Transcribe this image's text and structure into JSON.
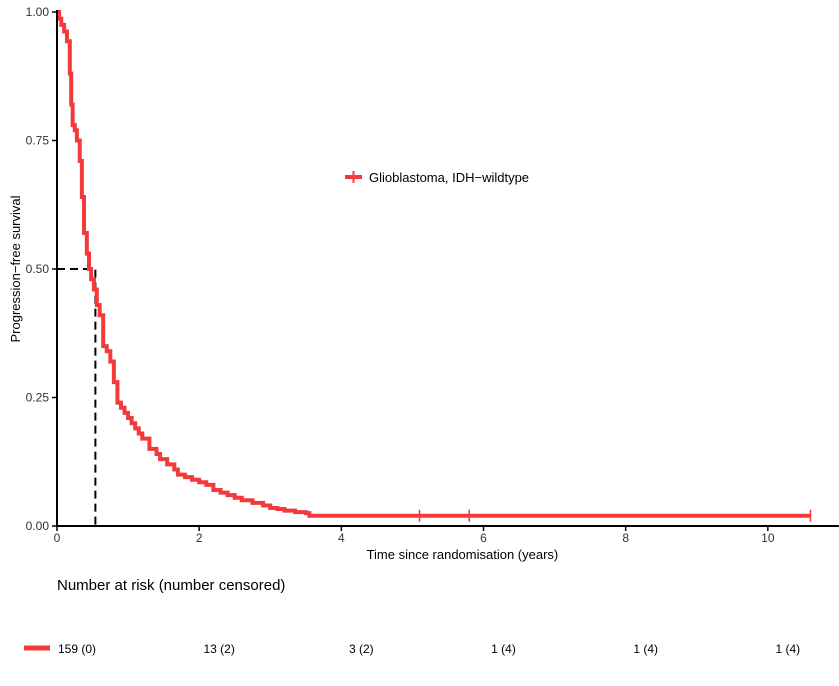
{
  "chart_data": {
    "type": "line",
    "subtype": "kaplan-meier",
    "title": "",
    "xlabel": "Time since randomisation (years)",
    "ylabel": "Progression−free survival",
    "xlim": [
      0,
      11
    ],
    "ylim": [
      0,
      1
    ],
    "x_ticks": [
      0,
      2,
      4,
      6,
      8,
      10
    ],
    "x_tick_labels": [
      "0",
      "2",
      "4",
      "6",
      "8",
      "10"
    ],
    "y_ticks": [
      0,
      0.25,
      0.5,
      0.75,
      1
    ],
    "y_tick_labels": [
      "0.00",
      "0.25",
      "0.50",
      "0.75",
      "1.00"
    ],
    "grid": false,
    "legend_position": "upper-middle",
    "median": {
      "x": 0.54,
      "y": 0.5
    },
    "series": [
      {
        "name": "Glioblastoma, IDH−wildtype",
        "color": "#f23a3a",
        "x": [
          0,
          0.03,
          0.06,
          0.1,
          0.14,
          0.18,
          0.2,
          0.22,
          0.25,
          0.28,
          0.32,
          0.35,
          0.38,
          0.42,
          0.45,
          0.48,
          0.52,
          0.56,
          0.6,
          0.65,
          0.7,
          0.75,
          0.8,
          0.85,
          0.9,
          0.95,
          1.0,
          1.05,
          1.1,
          1.15,
          1.2,
          1.3,
          1.4,
          1.45,
          1.55,
          1.65,
          1.7,
          1.8,
          1.9,
          2.0,
          2.1,
          2.2,
          2.3,
          2.4,
          2.5,
          2.6,
          2.75,
          2.9,
          3.0,
          3.1,
          3.2,
          3.35,
          3.5,
          3.55,
          10.6
        ],
        "y": [
          1.0,
          0.987,
          0.975,
          0.962,
          0.943,
          0.88,
          0.82,
          0.78,
          0.77,
          0.75,
          0.71,
          0.64,
          0.57,
          0.53,
          0.5,
          0.48,
          0.46,
          0.43,
          0.41,
          0.35,
          0.34,
          0.32,
          0.28,
          0.24,
          0.23,
          0.22,
          0.21,
          0.2,
          0.19,
          0.18,
          0.17,
          0.15,
          0.14,
          0.13,
          0.12,
          0.11,
          0.1,
          0.095,
          0.09,
          0.085,
          0.08,
          0.07,
          0.065,
          0.06,
          0.055,
          0.05,
          0.045,
          0.04,
          0.035,
          0.033,
          0.03,
          0.027,
          0.025,
          0.02,
          0.02
        ],
        "censored": [
          {
            "x": 5.1,
            "y": 0.02
          },
          {
            "x": 5.8,
            "y": 0.02
          },
          {
            "x": 10.6,
            "y": 0.02
          }
        ]
      }
    ],
    "risk_table": {
      "title": "Number at risk (number censored)",
      "times": [
        0,
        2,
        4,
        6,
        8,
        10
      ],
      "rows": [
        {
          "name": "Glioblastoma, IDH−wildtype",
          "color": "#f23a3a",
          "values": [
            "159 (0)",
            "13 (2)",
            "3 (2)",
            "1 (4)",
            "1 (4)",
            "1 (4)"
          ]
        }
      ]
    }
  }
}
